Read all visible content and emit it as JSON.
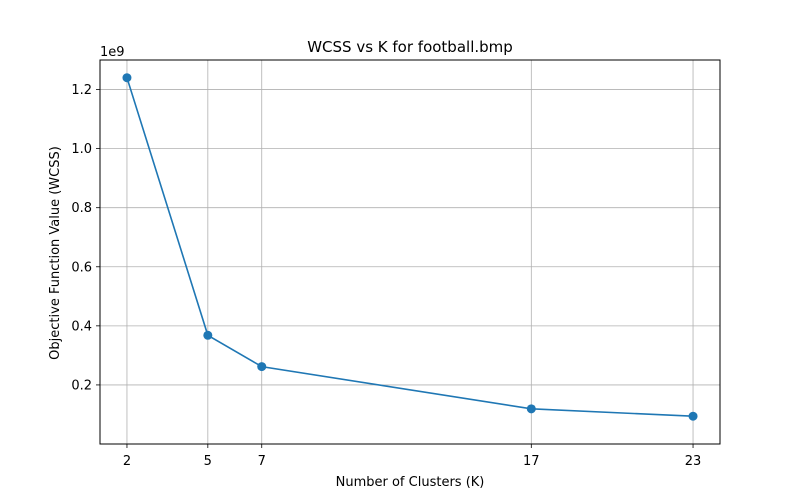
{
  "chart_data": {
    "type": "line",
    "title": "WCSS vs K for football.bmp",
    "xlabel": "Number of Clusters (K)",
    "ylabel": "Objective Function Value (WCSS)",
    "y_offset_label": "1e9",
    "x": [
      2,
      5,
      7,
      17,
      23
    ],
    "series": [
      {
        "values": [
          1.24,
          0.368,
          0.262,
          0.119,
          0.094
        ],
        "color": "#1f77b4",
        "marker": "circle"
      }
    ],
    "x_ticks": [
      2,
      5,
      7,
      17,
      23
    ],
    "x_tick_labels": [
      "2",
      "5",
      "7",
      "17",
      "23"
    ],
    "y_ticks": [
      0.2,
      0.4,
      0.6,
      0.8,
      1.0,
      1.2
    ],
    "y_tick_labels": [
      "0.2",
      "0.4",
      "0.6",
      "0.8",
      "1.0",
      "1.2"
    ],
    "xlim": [
      1.0,
      24.0
    ],
    "ylim": [
      0.0,
      1.3
    ],
    "grid": true
  }
}
